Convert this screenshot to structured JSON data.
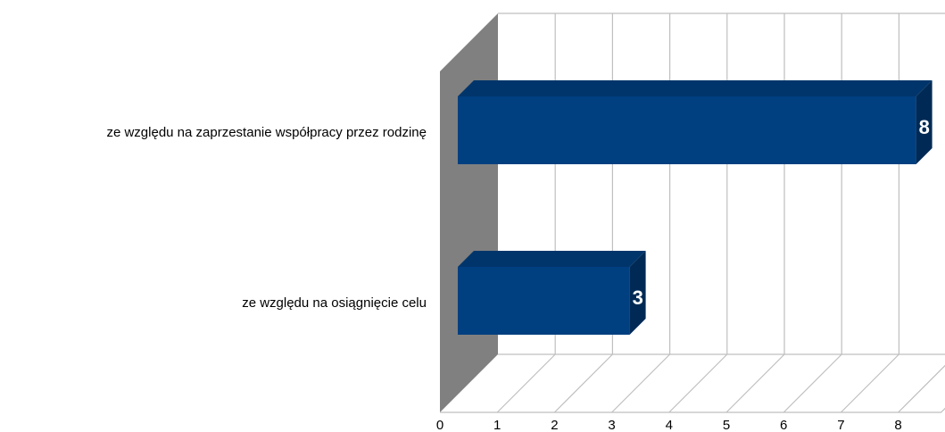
{
  "chart_data": {
    "type": "bar",
    "orientation": "horizontal",
    "style": "3d",
    "categories": [
      "ze względu na zaprzestanie współpracy przez rodzinę",
      "ze względu na osiągnięcie celu"
    ],
    "values": [
      8,
      3
    ],
    "data_labels": [
      "8",
      "3"
    ],
    "xlim": [
      0,
      8
    ],
    "x_ticks": [
      "0",
      "1",
      "2",
      "3",
      "4",
      "5",
      "6",
      "7",
      "8"
    ],
    "grid": true,
    "legend": "none",
    "colors": {
      "bar_front": "#003F80",
      "bar_top": "#00356B",
      "bar_side": "#002A55",
      "wall": "#808080",
      "grid": "#BFBFBF",
      "data_label": "#FFFFFF"
    }
  }
}
